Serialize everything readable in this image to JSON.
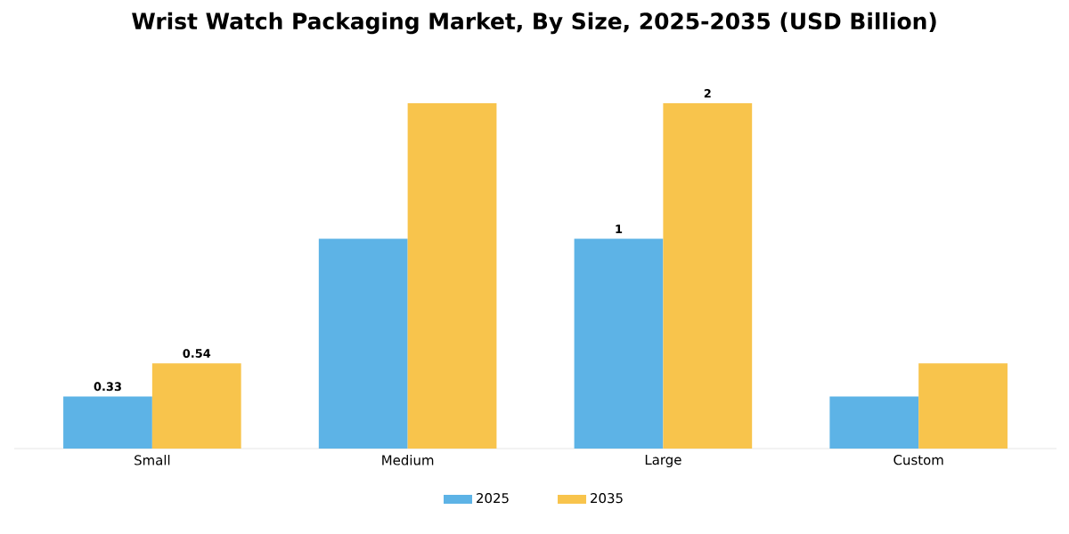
{
  "chart_data": {
    "type": "bar",
    "title": "Wrist Watch Packaging Market, By Size, 2025-2035 (USD Billion)",
    "categories": [
      "Small",
      "Medium",
      "Large",
      "Custom"
    ],
    "legend": "bottom",
    "series": [
      {
        "name": "2025",
        "color": "#5db3e6",
        "values": [
          0.33,
          1.33,
          1.33,
          0.33
        ],
        "value_labels": [
          "0.33",
          null,
          "1",
          null
        ]
      },
      {
        "name": "2035",
        "color": "#f8c44c",
        "values": [
          0.54,
          2.19,
          2.19,
          0.54
        ],
        "value_labels": [
          "0.54",
          null,
          "2",
          null
        ]
      }
    ]
  }
}
